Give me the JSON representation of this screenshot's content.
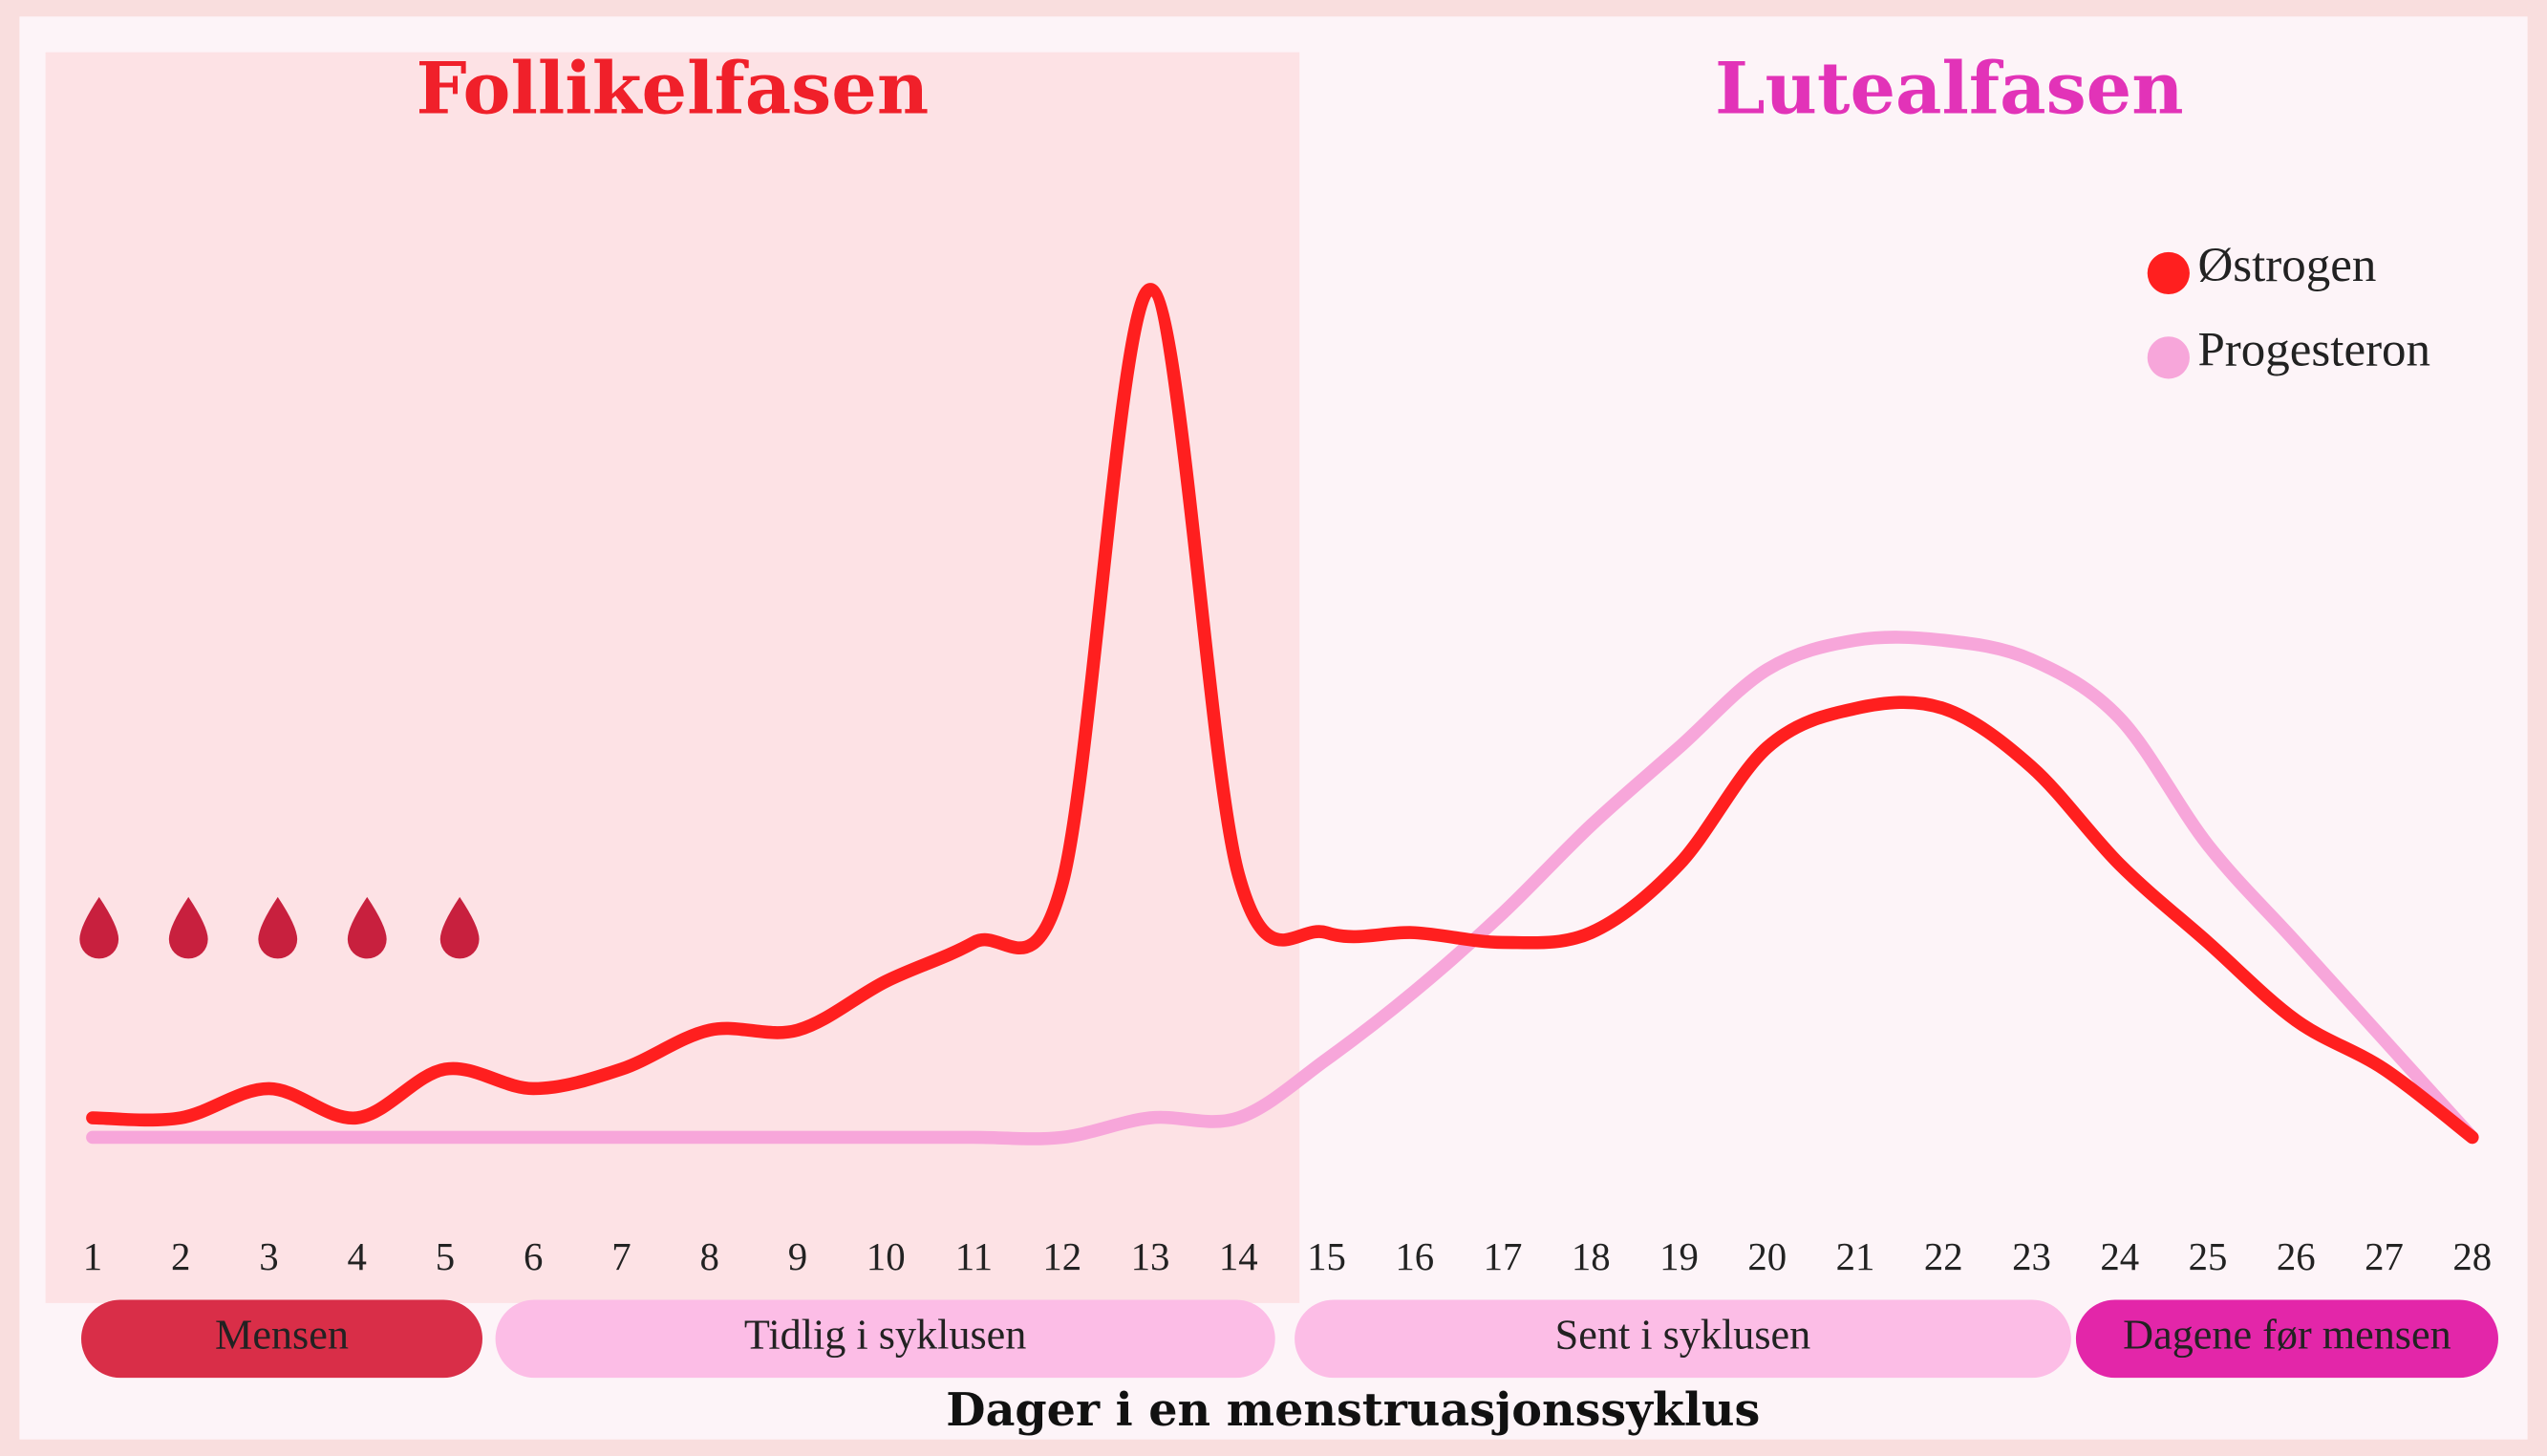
{
  "chart_data": {
    "type": "line",
    "phases": [
      {
        "label": "Follikelfasen",
        "color": "#f0202a"
      },
      {
        "label": "Lutealfasen",
        "color": "#e233b8"
      }
    ],
    "x": [
      1,
      2,
      3,
      4,
      5,
      6,
      7,
      8,
      9,
      10,
      11,
      12,
      13,
      14,
      15,
      16,
      17,
      18,
      19,
      20,
      21,
      22,
      23,
      24,
      25,
      26,
      27,
      28
    ],
    "xlim": [
      1,
      28
    ],
    "ylim": [
      0,
      100
    ],
    "series": [
      {
        "name": "Progesteron",
        "color": "#f7a6da",
        "values": [
          10,
          10,
          10,
          10,
          10,
          10,
          10,
          10,
          10,
          10,
          10,
          10,
          12,
          12,
          18,
          25,
          33,
          42,
          50,
          58,
          61,
          61,
          59,
          53,
          40,
          30,
          20,
          10
        ]
      },
      {
        "name": "Østrogen",
        "color": "#ff1f1f",
        "values": [
          12,
          12,
          15,
          12,
          17,
          15,
          17,
          21,
          21,
          26,
          30,
          36,
          97,
          37,
          31,
          31,
          30,
          31,
          38,
          50,
          54,
          54,
          48,
          38,
          30,
          22,
          17,
          10
        ]
      }
    ],
    "legend_order": [
      1,
      0
    ],
    "stages": [
      {
        "label": "Mensen",
        "color": "#d92e48"
      },
      {
        "label": "Tidlig i syklusen",
        "color": "#fcbde6"
      },
      {
        "label": "Sent i syklusen",
        "color": "#fcbde6"
      },
      {
        "label": "Dagene før mensen",
        "color": "#e326a9"
      }
    ],
    "x_label": "Dager i en menstruasjonssyklus"
  }
}
